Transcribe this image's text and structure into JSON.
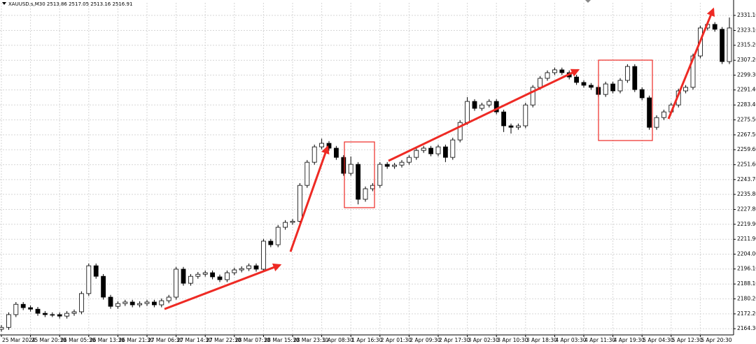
{
  "chart_data": {
    "type": "candlestick",
    "title": "XAUUSD.s,M30  2513.86 2517.05 2513.16 2516.91",
    "categories": [
      "25 Mar 2024",
      null,
      null,
      null,
      "25 Mar 20:30",
      null,
      null,
      null,
      "26 Mar 05:30",
      null,
      null,
      null,
      "26 Mar 13:30",
      null,
      null,
      null,
      "26 Mar 21:30",
      null,
      null,
      null,
      "27 Mar 06:30",
      null,
      null,
      null,
      "27 Mar 14:30",
      null,
      null,
      null,
      "27 Mar 22:30",
      null,
      null,
      null,
      "28 Mar 07:30",
      null,
      null,
      null,
      "28 Mar 15:30",
      null,
      null,
      null,
      "28 Mar 23:30",
      null,
      null,
      null,
      "1 Apr 08:30",
      null,
      null,
      null,
      "1 Apr 16:30",
      null,
      null,
      null,
      "2 Apr 01:30",
      null,
      null,
      null,
      "2 Apr 09:30",
      null,
      null,
      null,
      "2 Apr 17:30",
      null,
      null,
      null,
      "3 Apr 02:30",
      null,
      null,
      null,
      "3 Apr 10:30",
      null,
      null,
      null,
      "3 Apr 18:30",
      null,
      null,
      null,
      "4 Apr 03:30",
      null,
      null,
      null,
      "4 Apr 11:30",
      null,
      null,
      null,
      "4 Apr 19:30",
      null,
      null,
      null,
      "5 Apr 04:30",
      null,
      null,
      null,
      "5 Apr 12:30",
      null,
      null,
      null,
      "5 Apr 20:30",
      null,
      null,
      null,
      null
    ],
    "open": [
      2164.0,
      2165.0,
      2171.8,
      2177.3,
      2175.5,
      2174.7,
      2172.5,
      2171.8,
      2171.8,
      2171.0,
      2172.5,
      2173.3,
      2183.0,
      2197.8,
      2192.2,
      2181.1,
      2176.2,
      2177.7,
      2178.5,
      2177.0,
      2177.7,
      2178.5,
      2177.0,
      2179.2,
      2181.1,
      2196.0,
      2188.5,
      2192.2,
      2193.3,
      2194.1,
      2191.9,
      2190.4,
      2194.1,
      2195.6,
      2196.3,
      2197.8,
      2196.0,
      2210.9,
      2209.0,
      2218.3,
      2220.9,
      2221.5,
      2240.6,
      2252.9,
      2261.1,
      2263.0,
      2260.4,
      2255.5,
      2247.0,
      2251.8,
      2233.2,
      2238.8,
      2240.6,
      2251.8,
      2250.7,
      2251.4,
      2252.9,
      2255.5,
      2259.2,
      2260.4,
      2257.4,
      2261.1,
      2255.5,
      2264.8,
      2274.1,
      2285.3,
      2281.6,
      2283.4,
      2285.3,
      2279.7,
      2272.3,
      2271.5,
      2272.3,
      2283.4,
      2292.8,
      2297.6,
      2300.6,
      2302.1,
      2300.6,
      2298.3,
      2295.4,
      2293.9,
      2292.8,
      2289.0,
      2294.6,
      2290.9,
      2296.5,
      2303.9,
      2291.6,
      2287.2,
      2271.5,
      2276.7,
      2279.7,
      2283.4,
      2290.9,
      2292.8,
      2309.5,
      2324.4,
      2326.3,
      2323.7,
      2306.5
    ],
    "high": [
      2166.2,
      2173.0,
      2178.5,
      2178.5,
      2176.7,
      2175.9,
      2173.7,
      2173.0,
      2173.0,
      2173.7,
      2174.5,
      2184.2,
      2199.0,
      2199.0,
      2193.4,
      2182.3,
      2178.9,
      2179.7,
      2179.7,
      2178.9,
      2179.7,
      2179.7,
      2180.4,
      2182.3,
      2197.2,
      2197.2,
      2193.4,
      2194.5,
      2195.3,
      2195.3,
      2193.1,
      2195.3,
      2196.8,
      2197.5,
      2199.0,
      2199.0,
      2212.1,
      2212.1,
      2219.5,
      2222.1,
      2222.7,
      2241.8,
      2254.1,
      2262.3,
      2265.5,
      2264.2,
      2261.6,
      2256.7,
      2256.0,
      2253.0,
      2240.0,
      2241.8,
      2253.0,
      2253.0,
      2252.6,
      2254.1,
      2256.7,
      2260.4,
      2261.6,
      2261.6,
      2262.3,
      2262.3,
      2266.0,
      2275.3,
      2287.6,
      2286.5,
      2284.6,
      2286.5,
      2286.5,
      2280.9,
      2273.5,
      2273.5,
      2284.6,
      2294.0,
      2298.8,
      2301.8,
      2303.3,
      2303.3,
      2301.8,
      2299.5,
      2296.6,
      2295.1,
      2294.0,
      2295.8,
      2295.8,
      2297.7,
      2305.1,
      2305.1,
      2292.8,
      2288.4,
      2277.9,
      2280.9,
      2284.6,
      2292.1,
      2294.0,
      2310.7,
      2325.6,
      2327.5,
      2327.5,
      2324.9,
      2330.0
    ],
    "low": [
      2162.7,
      2163.7,
      2170.5,
      2174.2,
      2173.4,
      2171.2,
      2170.5,
      2170.5,
      2169.7,
      2169.7,
      2171.2,
      2172.0,
      2181.7,
      2190.9,
      2179.8,
      2174.9,
      2174.9,
      2176.4,
      2175.7,
      2175.7,
      2176.4,
      2175.7,
      2175.7,
      2177.9,
      2179.8,
      2187.2,
      2187.2,
      2190.9,
      2192.0,
      2190.6,
      2189.1,
      2189.1,
      2192.8,
      2194.3,
      2195.0,
      2194.7,
      2194.7,
      2207.7,
      2207.7,
      2217.0,
      2219.6,
      2220.2,
      2239.3,
      2251.6,
      2259.8,
      2259.1,
      2254.2,
      2245.7,
      2245.7,
      2230.5,
      2231.9,
      2237.5,
      2239.3,
      2249.4,
      2249.4,
      2250.1,
      2251.6,
      2254.2,
      2257.9,
      2256.1,
      2256.1,
      2253.0,
      2254.2,
      2263.5,
      2272.8,
      2280.3,
      2280.3,
      2282.1,
      2278.4,
      2269.0,
      2268.2,
      2270.2,
      2271.0,
      2282.1,
      2291.5,
      2296.3,
      2299.3,
      2299.3,
      2297.0,
      2294.1,
      2292.6,
      2291.5,
      2287.7,
      2287.7,
      2289.6,
      2289.6,
      2295.2,
      2290.3,
      2285.9,
      2270.2,
      2270.2,
      2275.4,
      2278.4,
      2282.1,
      2289.6,
      2291.5,
      2308.2,
      2323.1,
      2322.4,
      2305.2,
      2305.2
    ],
    "close": [
      2165.0,
      2171.8,
      2177.3,
      2175.5,
      2174.7,
      2172.5,
      2171.8,
      2171.8,
      2171.0,
      2172.5,
      2173.3,
      2183.0,
      2197.8,
      2192.2,
      2181.1,
      2176.2,
      2177.7,
      2178.5,
      2177.0,
      2177.7,
      2178.5,
      2177.0,
      2179.2,
      2181.1,
      2196.0,
      2188.5,
      2192.2,
      2193.3,
      2194.1,
      2191.9,
      2190.4,
      2194.1,
      2195.6,
      2196.3,
      2197.8,
      2196.0,
      2210.9,
      2209.0,
      2218.3,
      2220.9,
      2221.5,
      2240.6,
      2252.9,
      2261.1,
      2263.0,
      2260.4,
      2255.5,
      2247.0,
      2251.8,
      2233.2,
      2238.8,
      2240.6,
      2251.8,
      2250.7,
      2251.4,
      2252.9,
      2255.5,
      2259.2,
      2260.4,
      2257.4,
      2261.1,
      2255.5,
      2264.8,
      2274.1,
      2285.3,
      2281.6,
      2283.4,
      2285.3,
      2279.7,
      2272.3,
      2271.5,
      2272.3,
      2283.4,
      2292.8,
      2297.6,
      2300.6,
      2302.1,
      2300.6,
      2298.3,
      2295.4,
      2293.9,
      2292.8,
      2289.0,
      2294.6,
      2290.9,
      2296.5,
      2303.9,
      2291.6,
      2287.2,
      2271.5,
      2276.7,
      2279.7,
      2283.4,
      2290.9,
      2292.8,
      2309.5,
      2324.4,
      2326.3,
      2323.7,
      2306.5,
      2324.4
    ],
    "up_color": "#ffffff",
    "down_color": "#000000",
    "line_color": "#000000",
    "ylim": [
      2161.0,
      2337.8
    ],
    "yticks": [
      {
        "value": 2331.1,
        "label": "2331.10"
      },
      {
        "value": 2323.1,
        "label": "2323.10"
      },
      {
        "value": 2315.2,
        "label": "2315.20"
      },
      {
        "value": 2307.2,
        "label": "2307.20"
      },
      {
        "value": 2299.3,
        "label": "2299.30"
      },
      {
        "value": 2291.4,
        "label": "2291.40"
      },
      {
        "value": 2283.4,
        "label": "2283.40"
      },
      {
        "value": 2275.5,
        "label": "2275.50"
      },
      {
        "value": 2267.5,
        "label": "2267.50"
      },
      {
        "value": 2259.6,
        "label": "2259.60"
      },
      {
        "value": 2251.6,
        "label": "2251.60"
      },
      {
        "value": 2243.7,
        "label": "2243.70"
      },
      {
        "value": 2235.8,
        "label": "2235.80"
      },
      {
        "value": 2227.8,
        "label": "2227.80"
      },
      {
        "value": 2219.9,
        "label": "2219.90"
      },
      {
        "value": 2211.9,
        "label": "2211.90"
      },
      {
        "value": 2204,
        "label": "2204.00"
      },
      {
        "value": 2196.1,
        "label": "2196.10"
      },
      {
        "value": 2188.1,
        "label": "2188.10"
      },
      {
        "value": 2180.2,
        "label": "2180.20"
      },
      {
        "value": 2172.2,
        "label": "2172.20"
      },
      {
        "value": 2164.3,
        "label": "2164.30"
      }
    ],
    "grid": true
  }
}
